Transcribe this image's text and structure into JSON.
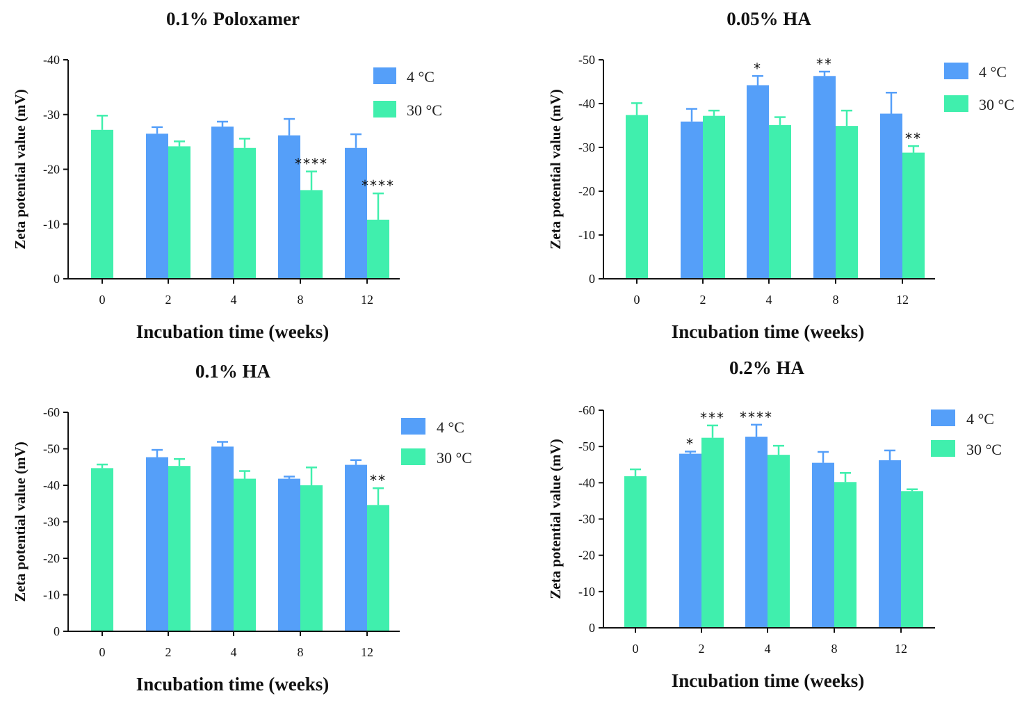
{
  "colors": {
    "series_4C": "#559ff9",
    "series_30C": "#40efad",
    "axis": "#111111"
  },
  "chart_data": [
    {
      "type": "bar",
      "title": "0.1% Poloxamer",
      "xlabel": "Incubation time (weeks)",
      "ylabel": "Zeta potential value (mV)",
      "categories": [
        "0",
        "2",
        "4",
        "8",
        "12"
      ],
      "ylim": [
        0,
        -40
      ],
      "yticks": [
        "0",
        "-10",
        "-20",
        "-30",
        "-40"
      ],
      "legend_position": "top-right",
      "series": [
        {
          "name": "4 °C",
          "values": [
            null,
            -26.5,
            -27.8,
            -26.2,
            -23.9
          ],
          "errors": [
            null,
            1.2,
            0.9,
            3.0,
            2.5
          ]
        },
        {
          "name": "30 °C",
          "values": [
            -27.2,
            -24.2,
            -23.9,
            -16.2,
            -10.8
          ],
          "errors": [
            2.6,
            0.9,
            1.7,
            3.4,
            4.8
          ]
        }
      ],
      "annotations": [
        {
          "series": 1,
          "category": "8",
          "text": "****"
        },
        {
          "series": 1,
          "category": "12",
          "text": "****"
        }
      ]
    },
    {
      "type": "bar",
      "title": "0.05% HA",
      "xlabel": "Incubation time (weeks)",
      "ylabel": "Zeta potential value (mV)",
      "categories": [
        "0",
        "2",
        "4",
        "8",
        "12"
      ],
      "ylim": [
        0,
        -50
      ],
      "yticks": [
        "0",
        "-10",
        "-20",
        "-30",
        "-40",
        "-50"
      ],
      "legend_position": "top-right",
      "series": [
        {
          "name": "4 °C",
          "values": [
            null,
            -35.9,
            -44.2,
            -46.3,
            -37.7
          ],
          "errors": [
            null,
            2.9,
            2.1,
            1.0,
            4.8
          ]
        },
        {
          "name": "30 °C",
          "values": [
            -37.4,
            -37.2,
            -35.1,
            -34.9,
            -28.8
          ],
          "errors": [
            2.7,
            1.2,
            1.8,
            3.5,
            1.5
          ]
        }
      ],
      "annotations": [
        {
          "series": 0,
          "category": "4",
          "text": "*"
        },
        {
          "series": 0,
          "category": "8",
          "text": "**"
        },
        {
          "series": 1,
          "category": "12",
          "text": "**"
        }
      ]
    },
    {
      "type": "bar",
      "title": "0.1% HA",
      "xlabel": "Incubation time (weeks)",
      "ylabel": "Zeta potential value (mV)",
      "categories": [
        "0",
        "2",
        "4",
        "8",
        "12"
      ],
      "ylim": [
        0,
        -60
      ],
      "yticks": [
        "0",
        "-10",
        "-20",
        "-30",
        "-40",
        "-50",
        "-60"
      ],
      "legend_position": "top-right",
      "series": [
        {
          "name": "4 °C",
          "values": [
            null,
            -47.7,
            -50.6,
            -41.8,
            -45.6
          ],
          "errors": [
            null,
            2.0,
            1.3,
            0.6,
            1.3
          ]
        },
        {
          "name": "30 °C",
          "values": [
            -44.7,
            -45.3,
            -41.8,
            -40.0,
            -34.6
          ],
          "errors": [
            1.0,
            1.9,
            2.1,
            4.9,
            4.6
          ]
        }
      ],
      "annotations": [
        {
          "series": 1,
          "category": "12",
          "text": "**"
        }
      ]
    },
    {
      "type": "bar",
      "title": "0.2% HA",
      "xlabel": "Incubation time (weeks)",
      "ylabel": "Zeta potential value (mV)",
      "categories": [
        "0",
        "2",
        "4",
        "8",
        "12"
      ],
      "ylim": [
        0,
        -60
      ],
      "yticks": [
        "0",
        "-10",
        "-20",
        "-30",
        "-40",
        "-50",
        "-60"
      ],
      "legend_position": "top-right",
      "series": [
        {
          "name": "4 °C",
          "values": [
            null,
            -48.0,
            -52.7,
            -45.5,
            -46.2
          ],
          "errors": [
            null,
            0.6,
            3.3,
            3.0,
            2.7
          ]
        },
        {
          "name": "30 °C",
          "values": [
            -41.8,
            -52.4,
            -47.7,
            -40.2,
            -37.7
          ],
          "errors": [
            1.9,
            3.4,
            2.5,
            2.5,
            0.5
          ]
        }
      ],
      "annotations": [
        {
          "series": 0,
          "category": "2",
          "text": "*"
        },
        {
          "series": 1,
          "category": "2",
          "text": "***"
        },
        {
          "series": 0,
          "category": "4",
          "text": "****"
        }
      ]
    }
  ]
}
